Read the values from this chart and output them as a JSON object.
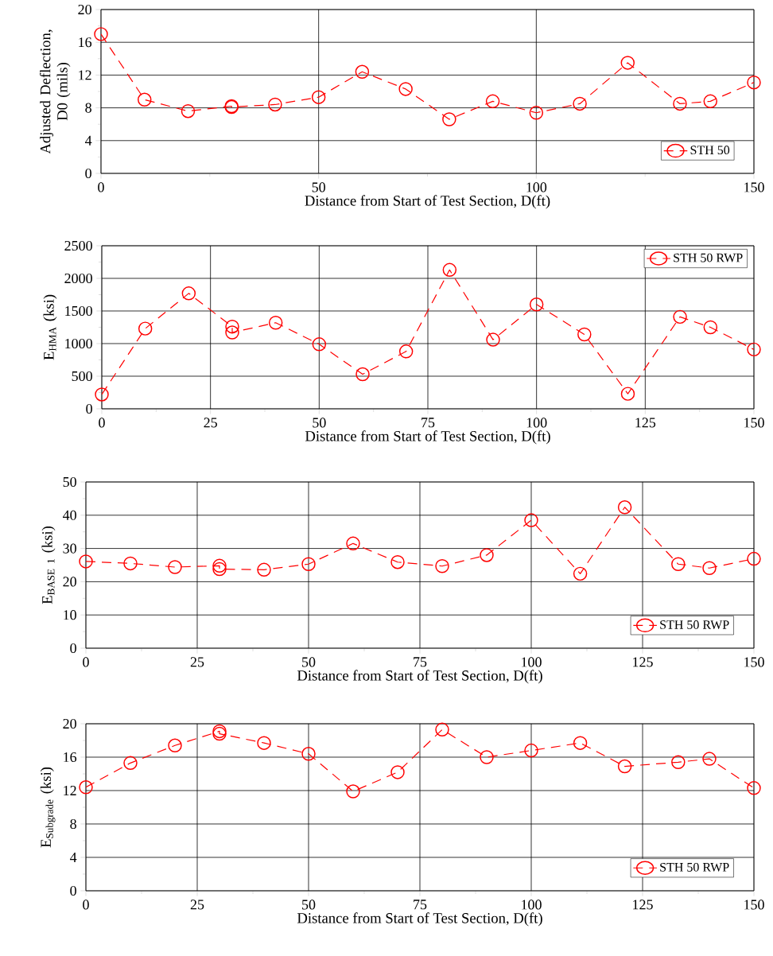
{
  "chart_data": [
    {
      "type": "line",
      "xlabel": "Distance from Start of Test Section, D(ft)",
      "ylabel": "Adjusted Deflection, D0 (mils)",
      "x": [
        0,
        10,
        20,
        30,
        30,
        40,
        50,
        60,
        70,
        80,
        90,
        100,
        110,
        121,
        133,
        140,
        150
      ],
      "series": [
        {
          "name": "STH 50",
          "color": "#ff0000",
          "values": [
            17.0,
            9.0,
            7.6,
            8.2,
            8.1,
            8.4,
            9.3,
            12.4,
            10.3,
            6.6,
            8.8,
            7.4,
            8.5,
            13.5,
            8.5,
            8.8,
            11.1
          ]
        }
      ],
      "xlim": [
        0,
        150
      ],
      "xticks": [
        0,
        {
          "value": 25,
          "label": null
        },
        50,
        {
          "value": 75,
          "label": null
        },
        100,
        {
          "value": 125,
          "label": null
        },
        150
      ],
      "ylim": [
        0,
        20
      ],
      "yticks": [
        0,
        {
          "value": 2,
          "label": null
        },
        4,
        {
          "value": 6,
          "label": null
        },
        8,
        {
          "value": 10,
          "label": null
        },
        12,
        {
          "value": 14,
          "label": null
        },
        16,
        {
          "value": 18,
          "label": null
        },
        20
      ],
      "grid": true,
      "legend": "bottom right",
      "marker": "circle",
      "line_style": "dashed"
    },
    {
      "type": "line",
      "xlabel": "Distance from Start of Test Section, D(ft)",
      "ylabel": "E$_{HMA}$ (ksi)",
      "x": [
        0,
        10,
        20,
        30,
        30,
        40,
        50,
        60,
        70,
        80,
        90,
        100,
        111,
        121,
        133,
        140,
        150
      ],
      "series": [
        {
          "name": "STH 50 RWP",
          "color": "#ff0000",
          "values": [
            220,
            1230,
            1770,
            1260,
            1170,
            1320,
            990,
            530,
            880,
            2130,
            1060,
            1600,
            1140,
            230,
            1410,
            1250,
            910
          ]
        }
      ],
      "xlim": [
        0,
        150
      ],
      "xticks": [
        0,
        {
          "value": 12.5,
          "label": null
        },
        25,
        {
          "value": 37.5,
          "label": null
        },
        50,
        {
          "value": 62.5,
          "label": null
        },
        75,
        {
          "value": 87.5,
          "label": null
        },
        100,
        {
          "value": 112.5,
          "label": null
        },
        125,
        {
          "value": 137.5,
          "label": null
        },
        150
      ],
      "ylim": [
        0,
        2500
      ],
      "yticks": [
        0,
        {
          "value": 250,
          "label": null
        },
        500,
        {
          "value": 750,
          "label": null
        },
        1000,
        {
          "value": 1250,
          "label": null
        },
        1500,
        {
          "value": 1750,
          "label": null
        },
        2000,
        {
          "value": 2250,
          "label": null
        },
        2500
      ],
      "grid": true,
      "legend": "top right",
      "marker": "circle",
      "line_style": "dashed"
    },
    {
      "type": "line",
      "xlabel": "Distance from Start of Test Section, D(ft)",
      "ylabel": "E$_{BASE 1}$ (ksi)",
      "x": [
        0,
        10,
        20,
        30,
        30,
        40,
        50,
        60,
        70,
        80,
        90,
        100,
        111,
        121,
        133,
        140,
        150
      ],
      "series": [
        {
          "name": "STH 50 RWP",
          "color": "#ff0000",
          "values": [
            26.1,
            25.5,
            24.4,
            24.8,
            23.8,
            23.6,
            25.3,
            31.5,
            25.9,
            24.7,
            28.0,
            38.5,
            22.4,
            42.4,
            25.3,
            24.1,
            26.9
          ]
        }
      ],
      "xlim": [
        0,
        150
      ],
      "xticks": [
        0,
        {
          "value": 12.5,
          "label": null
        },
        25,
        {
          "value": 37.5,
          "label": null
        },
        50,
        {
          "value": 62.5,
          "label": null
        },
        75,
        {
          "value": 87.5,
          "label": null
        },
        100,
        {
          "value": 112.5,
          "label": null
        },
        125,
        {
          "value": 137.5,
          "label": null
        },
        150
      ],
      "ylim": [
        0,
        50
      ],
      "yticks": [
        0,
        {
          "value": 5,
          "label": null
        },
        10,
        {
          "value": 15,
          "label": null
        },
        20,
        {
          "value": 25,
          "label": null
        },
        30,
        {
          "value": 35,
          "label": null
        },
        40,
        {
          "value": 45,
          "label": null
        },
        50
      ],
      "grid": true,
      "legend": "bottom right",
      "marker": "circle",
      "line_style": "dashed"
    },
    {
      "type": "line",
      "xlabel": "Distance from Start of Test Section, D(ft)",
      "ylabel": "E$_{Subgrade}$ (ksi)",
      "x": [
        0,
        10,
        20,
        30,
        30,
        40,
        50,
        60,
        70,
        80,
        90,
        100,
        111,
        121,
        133,
        140,
        150
      ],
      "series": [
        {
          "name": "STH 50 RWP",
          "color": "#ff0000",
          "values": [
            12.4,
            15.3,
            17.4,
            19.1,
            18.8,
            17.7,
            16.4,
            11.9,
            14.2,
            19.3,
            16.0,
            16.8,
            17.7,
            14.9,
            15.4,
            15.8,
            12.3
          ]
        }
      ],
      "xlim": [
        0,
        150
      ],
      "xticks": [
        0,
        {
          "value": 12.5,
          "label": null
        },
        25,
        {
          "value": 37.5,
          "label": null
        },
        50,
        {
          "value": 62.5,
          "label": null
        },
        75,
        {
          "value": 87.5,
          "label": null
        },
        100,
        {
          "value": 112.5,
          "label": null
        },
        125,
        {
          "value": 137.5,
          "label": null
        },
        150
      ],
      "ylim": [
        0,
        20
      ],
      "yticks": [
        0,
        {
          "value": 2,
          "label": null
        },
        4,
        {
          "value": 6,
          "label": null
        },
        8,
        {
          "value": 10,
          "label": null
        },
        12,
        {
          "value": 14,
          "label": null
        },
        16,
        {
          "value": 18,
          "label": null
        },
        20
      ],
      "grid": true,
      "legend": "bottom right",
      "marker": "circle",
      "line_style": "dashed"
    }
  ]
}
